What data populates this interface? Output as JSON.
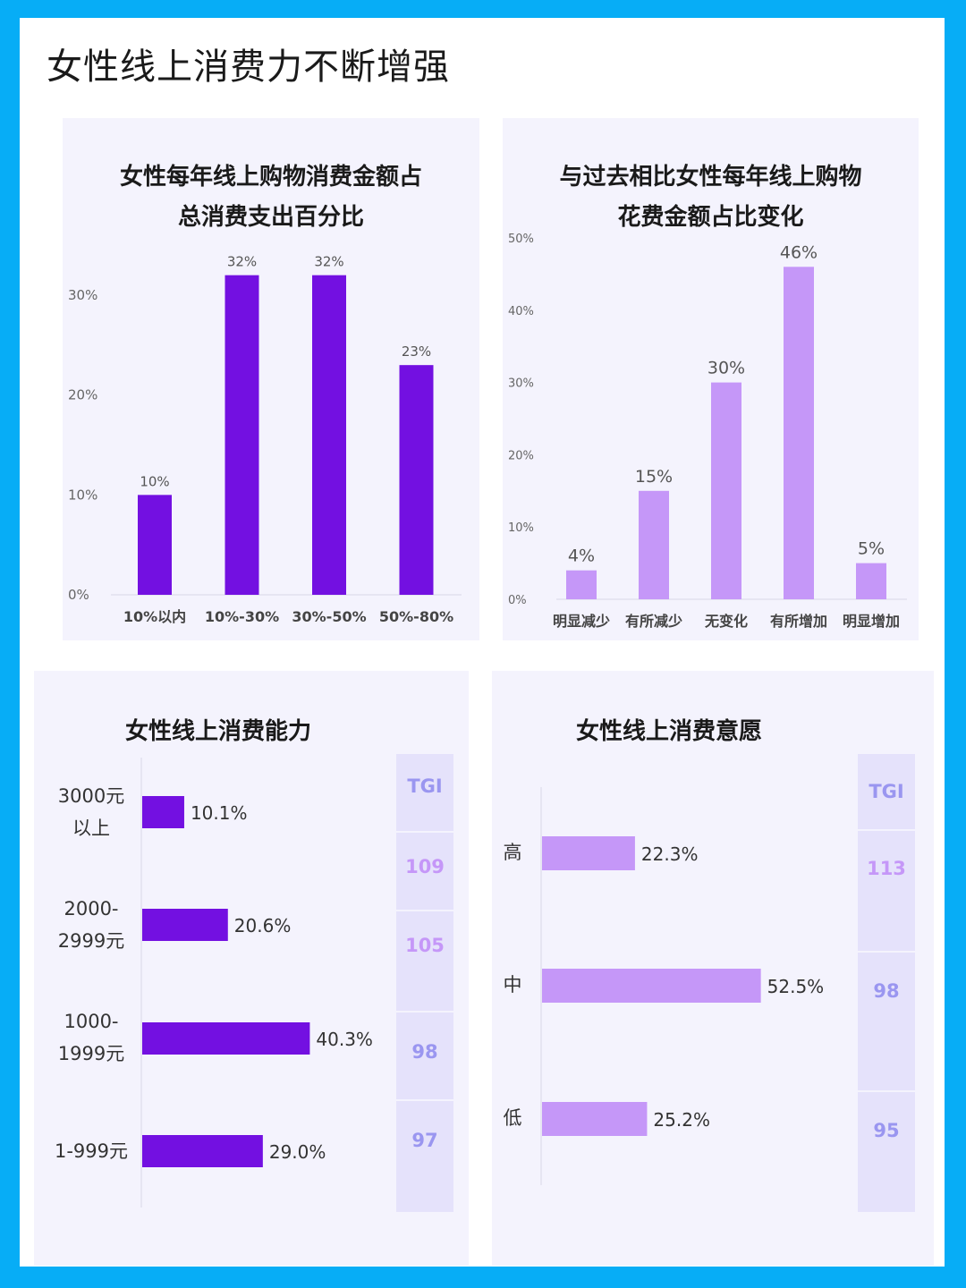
{
  "page_title": "女性线上消费力不断增强",
  "colors": {
    "frame": "#07adf6",
    "dark_purple": "#7310e1",
    "light_purple": "#c597f8",
    "tgi_text_purple": "#c597f8",
    "tgi_text_blue": "#9a96f0"
  },
  "chart_data": [
    {
      "type": "bar",
      "title_lines": [
        "女性每年线上购物消费金额占",
        "总消费支出百分比"
      ],
      "categories": [
        "10%以内",
        "10%-30%",
        "30%-50%",
        "50%-80%"
      ],
      "values": [
        10,
        32,
        32,
        23
      ],
      "value_labels": [
        "10%",
        "32%",
        "32%",
        "23%"
      ],
      "yticks": [
        "0%",
        "10%",
        "20%",
        "30%"
      ],
      "ylim": [
        0,
        30
      ],
      "color": "#7310e1"
    },
    {
      "type": "bar",
      "title_lines": [
        "与过去相比女性每年线上购物",
        "花费金额占比变化"
      ],
      "categories": [
        "明显减少",
        "有所减少",
        "无变化",
        "有所增加",
        "明显增加"
      ],
      "values": [
        4,
        15,
        30,
        46,
        5
      ],
      "value_labels": [
        "4%",
        "15%",
        "30%",
        "46%",
        "5%"
      ],
      "yticks": [
        "0%",
        "10%",
        "20%",
        "30%",
        "40%",
        "50%"
      ],
      "ylim": [
        0,
        50
      ],
      "color": "#c597f8"
    },
    {
      "type": "bar",
      "orientation": "horizontal",
      "title": "女性线上消费能力",
      "categories": [
        [
          "3000元",
          "以上"
        ],
        [
          "2000-",
          "2999元"
        ],
        [
          "1000-",
          "1999元"
        ],
        [
          "1-999元"
        ]
      ],
      "values": [
        10.1,
        20.6,
        40.3,
        29.0
      ],
      "value_labels": [
        "10.1%",
        "20.6%",
        "40.3%",
        "29.0%"
      ],
      "tgi_header": "TGI",
      "tgi": [
        "109",
        "105",
        "98",
        "97"
      ],
      "color": "#7310e1"
    },
    {
      "type": "bar",
      "orientation": "horizontal",
      "title": "女性线上消费意愿",
      "categories": [
        "高",
        "中",
        "低"
      ],
      "values": [
        22.3,
        52.5,
        25.2
      ],
      "value_labels": [
        "22.3%",
        "52.5%",
        "25.2%"
      ],
      "tgi_header": "TGI",
      "tgi": [
        "113",
        "98",
        "95"
      ],
      "color": "#c597f8"
    }
  ]
}
